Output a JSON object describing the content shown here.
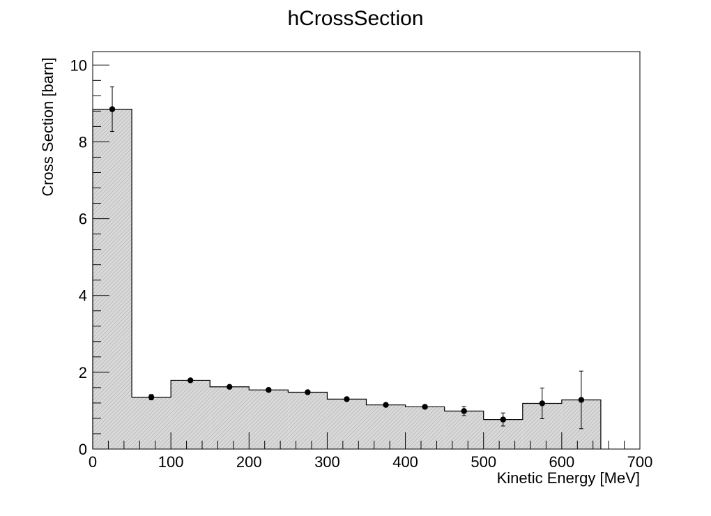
{
  "chart_data": {
    "type": "bar",
    "title": "hCrossSection",
    "xlabel": "Kinetic Energy [MeV]",
    "ylabel": "Cross Section [barn]",
    "xlim": [
      0,
      700
    ],
    "ylim": [
      0,
      10.35
    ],
    "x_ticks": [
      "0",
      "100",
      "200",
      "300",
      "400",
      "500",
      "600",
      "700"
    ],
    "y_ticks": [
      "0",
      "2",
      "4",
      "6",
      "8",
      "10"
    ],
    "bin_edges": [
      0,
      50,
      100,
      150,
      200,
      250,
      300,
      350,
      400,
      450,
      500,
      550,
      600,
      650
    ],
    "bin_centers": [
      25,
      75,
      125,
      175,
      225,
      275,
      325,
      375,
      425,
      475,
      525,
      575,
      625
    ],
    "values": [
      8.85,
      1.35,
      1.79,
      1.62,
      1.54,
      1.48,
      1.3,
      1.15,
      1.1,
      0.99,
      0.77,
      1.19,
      1.28
    ],
    "errors": [
      0.58,
      0.07,
      0.04,
      0.04,
      0.04,
      0.03,
      0.04,
      0.04,
      0.04,
      0.12,
      0.17,
      0.4,
      0.75
    ],
    "legend": "none",
    "grid": false,
    "colors": {
      "fill": "#d6d6d6",
      "hatch": "#9a9a9a",
      "line": "#000000",
      "marker": "#000000",
      "background": "#ffffff"
    }
  }
}
